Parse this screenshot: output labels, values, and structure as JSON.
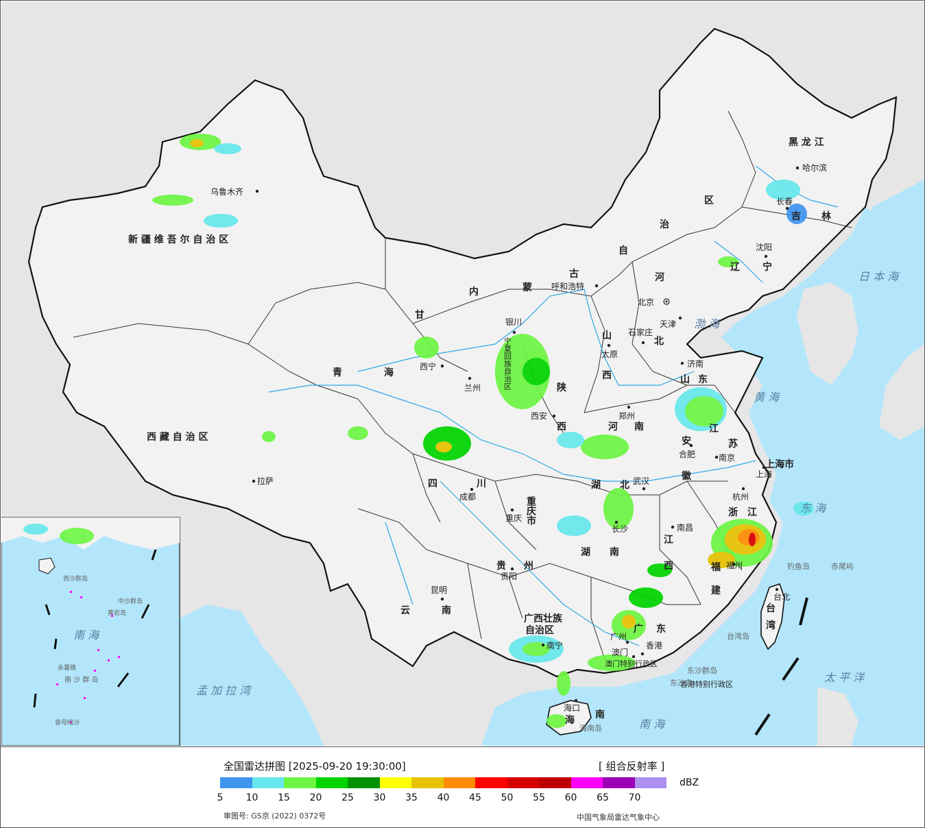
{
  "title": "全国雷达拼图 [2025-09-20 19:30:00]",
  "product": "[ 组合反射率 ]",
  "unit": "dBZ",
  "approval": "审图号: GS京 (2022) 0372号",
  "organization": "中国气象局雷达气象中心",
  "scale": {
    "colors": [
      "#3f94f0",
      "#66e8ec",
      "#6cf542",
      "#00d400",
      "#009100",
      "#ffff00",
      "#e6c200",
      "#ff8c00",
      "#ff0000",
      "#d60000",
      "#bf0000",
      "#ff00ff",
      "#9b00b5",
      "#ad8ff0"
    ],
    "ticks": [
      "5",
      "10",
      "15",
      "20",
      "25",
      "30",
      "35",
      "40",
      "45",
      "50",
      "55",
      "60",
      "65",
      "70"
    ]
  },
  "colors": {
    "ocean": "#b3e6fb",
    "land": "#f2f2f2",
    "outside": "#e6e6e6",
    "rivers": "#2fa8e8"
  },
  "regions": {
    "xinjiang": "新 疆 维 吾 尔 自 治 区",
    "tibet": "西 藏 自 治 区",
    "qinghai1": "青",
    "qinghai2": "海",
    "gansu": "甘",
    "neimenggu": [
      "内",
      "蒙",
      "古",
      "自",
      "治",
      "区"
    ],
    "heilongjiang": "黑 龙 江",
    "jilin1": "吉",
    "jilin2": "林",
    "liaoning1": "辽",
    "liaoning2": "宁",
    "hebei1": "河",
    "hebei2": "北",
    "shanxi1": "山",
    "shanxi2": "西",
    "shaanxi1": "陕",
    "shaanxi2": "西",
    "ningxia": "宁夏回族自治区",
    "shandong1": "山",
    "shandong2": "东",
    "henan1": "河",
    "henan2": "南",
    "jiangsu1": "江",
    "jiangsu2": "苏",
    "anhui1": "安",
    "anhui2": "徽",
    "hubei1": "湖",
    "hubei2": "北",
    "sichuan1": "四",
    "sichuan2": "川",
    "chongqing": "重庆市",
    "hunan1": "湖",
    "hunan2": "南",
    "jiangxi1": "江",
    "jiangxi2": "西",
    "zhejiang1": "浙",
    "zhejiang2": "江",
    "fujian1": "福",
    "fujian2": "建",
    "guizhou1": "贵",
    "guizhou2": "州",
    "yunnan1": "云",
    "yunnan2": "南",
    "guangxi1": "广西壮族",
    "guangxi2": "自治区",
    "guangdong1": "广",
    "guangdong2": "东",
    "hainan1": "海",
    "hainan2": "南",
    "taiwan1": "台",
    "taiwan2": "湾",
    "shanghai": "上海市",
    "tianjin": "天津",
    "hongkong": "香港特别行政区",
    "macau": "澳门特别行政区"
  },
  "cities": {
    "urumqi": "乌鲁木齐",
    "lhasa": "拉萨",
    "xining": "西宁",
    "lanzhou": "兰州",
    "yinchuan": "银川",
    "hohhot": "呼和浩特",
    "beijing": "北京",
    "tianjin": "天津",
    "shijiazhuang": "石家庄",
    "taiyuan": "太原",
    "jinan": "济南",
    "zhengzhou": "郑州",
    "xian": "西安",
    "hefei": "合肥",
    "nanjing": "南京",
    "shanghai": "上海",
    "hangzhou": "杭州",
    "wuhan": "武汉",
    "chengdu": "成都",
    "chongqing": "重庆",
    "changsha": "长沙",
    "nanchang": "南昌",
    "fuzhou": "福州",
    "guiyang": "贵阳",
    "kunming": "昆明",
    "nanning": "南宁",
    "guangzhou": "广州",
    "hongkong": "香港",
    "macau": "澳门",
    "haikou": "海口",
    "taipei": "台北",
    "harbin": "哈尔滨",
    "changchun": "长春",
    "shenyang": "沈阳"
  },
  "seas": {
    "bohai": "渤 海",
    "huanghai": "黄 海",
    "donghai": "东 海",
    "nanhai": "南   海",
    "taipingyang": "太 平 洋",
    "ribenhai": "日 本 海",
    "mengjialawan": "孟 加 拉 湾",
    "nanhai_inset": "南 海"
  },
  "islands": {
    "diaoyudao": "钓鱼岛",
    "chiweiyu": "赤尾屿",
    "taiwandao": "台湾岛",
    "hainandao": "海南岛",
    "dongshaqundao": "东沙群岛",
    "dongshadao": "东沙岛",
    "xisha": "西沙群岛",
    "zhongsha": "中沙群岛",
    "huangyandao": "黄岩岛",
    "nansha": "南 沙 群 岛",
    "yongshu": "永暑礁",
    "zengmu": "曾母暗沙"
  }
}
